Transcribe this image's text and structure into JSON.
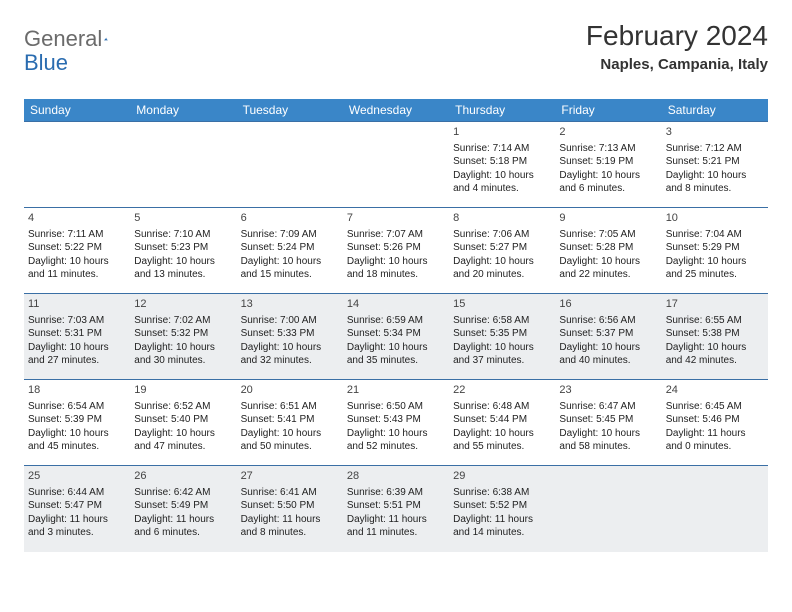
{
  "logo": {
    "text1": "General",
    "text2": "Blue"
  },
  "title": "February 2024",
  "location": "Naples, Campania, Italy",
  "columns": [
    "Sunday",
    "Monday",
    "Tuesday",
    "Wednesday",
    "Thursday",
    "Friday",
    "Saturday"
  ],
  "colors": {
    "header_bg": "#3a86c8",
    "header_text": "#ffffff",
    "row_border": "#3a6fa5",
    "shaded_bg": "#eceef0",
    "logo_gray": "#6b6b6b",
    "logo_blue": "#2a6cb0"
  },
  "weeks": [
    [
      null,
      null,
      null,
      null,
      {
        "n": "1",
        "sr": "7:14 AM",
        "ss": "5:18 PM",
        "dl": "10 hours and 4 minutes."
      },
      {
        "n": "2",
        "sr": "7:13 AM",
        "ss": "5:19 PM",
        "dl": "10 hours and 6 minutes."
      },
      {
        "n": "3",
        "sr": "7:12 AM",
        "ss": "5:21 PM",
        "dl": "10 hours and 8 minutes."
      }
    ],
    [
      {
        "n": "4",
        "sr": "7:11 AM",
        "ss": "5:22 PM",
        "dl": "10 hours and 11 minutes."
      },
      {
        "n": "5",
        "sr": "7:10 AM",
        "ss": "5:23 PM",
        "dl": "10 hours and 13 minutes."
      },
      {
        "n": "6",
        "sr": "7:09 AM",
        "ss": "5:24 PM",
        "dl": "10 hours and 15 minutes."
      },
      {
        "n": "7",
        "sr": "7:07 AM",
        "ss": "5:26 PM",
        "dl": "10 hours and 18 minutes."
      },
      {
        "n": "8",
        "sr": "7:06 AM",
        "ss": "5:27 PM",
        "dl": "10 hours and 20 minutes."
      },
      {
        "n": "9",
        "sr": "7:05 AM",
        "ss": "5:28 PM",
        "dl": "10 hours and 22 minutes."
      },
      {
        "n": "10",
        "sr": "7:04 AM",
        "ss": "5:29 PM",
        "dl": "10 hours and 25 minutes."
      }
    ],
    [
      {
        "n": "11",
        "sr": "7:03 AM",
        "ss": "5:31 PM",
        "dl": "10 hours and 27 minutes."
      },
      {
        "n": "12",
        "sr": "7:02 AM",
        "ss": "5:32 PM",
        "dl": "10 hours and 30 minutes."
      },
      {
        "n": "13",
        "sr": "7:00 AM",
        "ss": "5:33 PM",
        "dl": "10 hours and 32 minutes."
      },
      {
        "n": "14",
        "sr": "6:59 AM",
        "ss": "5:34 PM",
        "dl": "10 hours and 35 minutes."
      },
      {
        "n": "15",
        "sr": "6:58 AM",
        "ss": "5:35 PM",
        "dl": "10 hours and 37 minutes."
      },
      {
        "n": "16",
        "sr": "6:56 AM",
        "ss": "5:37 PM",
        "dl": "10 hours and 40 minutes."
      },
      {
        "n": "17",
        "sr": "6:55 AM",
        "ss": "5:38 PM",
        "dl": "10 hours and 42 minutes."
      }
    ],
    [
      {
        "n": "18",
        "sr": "6:54 AM",
        "ss": "5:39 PM",
        "dl": "10 hours and 45 minutes."
      },
      {
        "n": "19",
        "sr": "6:52 AM",
        "ss": "5:40 PM",
        "dl": "10 hours and 47 minutes."
      },
      {
        "n": "20",
        "sr": "6:51 AM",
        "ss": "5:41 PM",
        "dl": "10 hours and 50 minutes."
      },
      {
        "n": "21",
        "sr": "6:50 AM",
        "ss": "5:43 PM",
        "dl": "10 hours and 52 minutes."
      },
      {
        "n": "22",
        "sr": "6:48 AM",
        "ss": "5:44 PM",
        "dl": "10 hours and 55 minutes."
      },
      {
        "n": "23",
        "sr": "6:47 AM",
        "ss": "5:45 PM",
        "dl": "10 hours and 58 minutes."
      },
      {
        "n": "24",
        "sr": "6:45 AM",
        "ss": "5:46 PM",
        "dl": "11 hours and 0 minutes."
      }
    ],
    [
      {
        "n": "25",
        "sr": "6:44 AM",
        "ss": "5:47 PM",
        "dl": "11 hours and 3 minutes."
      },
      {
        "n": "26",
        "sr": "6:42 AM",
        "ss": "5:49 PM",
        "dl": "11 hours and 6 minutes."
      },
      {
        "n": "27",
        "sr": "6:41 AM",
        "ss": "5:50 PM",
        "dl": "11 hours and 8 minutes."
      },
      {
        "n": "28",
        "sr": "6:39 AM",
        "ss": "5:51 PM",
        "dl": "11 hours and 11 minutes."
      },
      {
        "n": "29",
        "sr": "6:38 AM",
        "ss": "5:52 PM",
        "dl": "11 hours and 14 minutes."
      },
      null,
      null
    ]
  ],
  "labels": {
    "sunrise": "Sunrise:",
    "sunset": "Sunset:",
    "daylight": "Daylight:"
  }
}
